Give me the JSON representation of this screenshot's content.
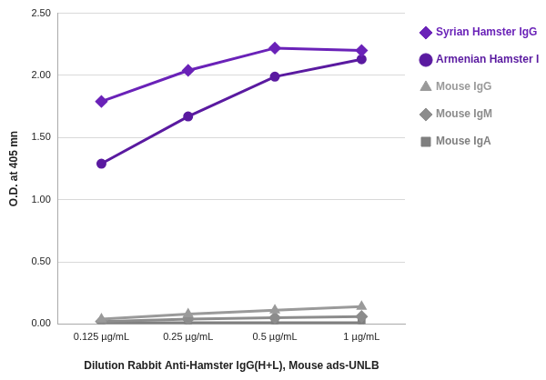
{
  "chart_data": {
    "type": "line",
    "x_label": "Dilution Rabbit Anti-Hamster IgG(H+L), Mouse ads-UNLB",
    "y_label": "O.D. at 405 mn",
    "categories": [
      "0.125 µg/mL",
      "0.25 µg/mL",
      "0.5 µg/mL",
      "1 µg/mL"
    ],
    "series": [
      {
        "name": "Syrian Hamster IgG",
        "color": "#6a22b8",
        "marker": "diamond",
        "values": [
          1.79,
          2.04,
          2.22,
          2.2
        ]
      },
      {
        "name": "Armenian Hamster IgG",
        "color": "#5a1aa0",
        "marker": "circle",
        "values": [
          1.29,
          1.67,
          1.99,
          2.13
        ]
      },
      {
        "name": "Mouse IgG",
        "color": "#9a9a9a",
        "marker": "triangle",
        "values": [
          0.04,
          0.08,
          0.11,
          0.14
        ]
      },
      {
        "name": "Mouse IgM",
        "color": "#8c8c8c",
        "marker": "diamond",
        "values": [
          0.02,
          0.04,
          0.05,
          0.06
        ]
      },
      {
        "name": "Mouse IgA",
        "color": "#7f7f7f",
        "marker": "square",
        "values": [
          0.01,
          0.01,
          0.01,
          0.01
        ]
      }
    ],
    "ylim": [
      0,
      2.5
    ],
    "yticks": [
      {
        "value": 0,
        "label": "0.00"
      },
      {
        "value": 0.5,
        "label": "0.50"
      },
      {
        "value": 1,
        "label": "1.00"
      },
      {
        "value": 1.5,
        "label": "1.50"
      },
      {
        "value": 2,
        "label": "2.00"
      },
      {
        "value": 2.5,
        "label": "2.50"
      }
    ],
    "grid": "y",
    "legend": "right"
  }
}
